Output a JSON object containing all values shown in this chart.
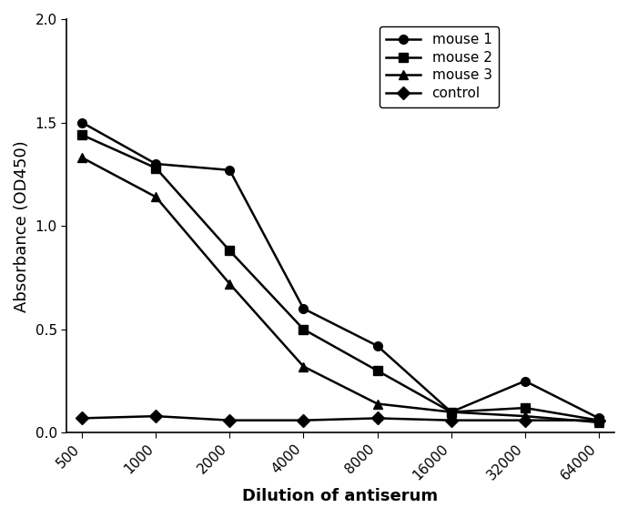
{
  "x_values": [
    500,
    1000,
    2000,
    4000,
    8000,
    16000,
    32000,
    64000
  ],
  "x_labels": [
    "500",
    "1000",
    "2000",
    "4000",
    "8000",
    "16000",
    "32000",
    "64000"
  ],
  "series": {
    "mouse 1": {
      "y": [
        1.5,
        1.3,
        1.27,
        0.6,
        0.42,
        0.1,
        0.25,
        0.07
      ],
      "marker": "o",
      "color": "#000000",
      "linewidth": 1.8
    },
    "mouse 2": {
      "y": [
        1.44,
        1.28,
        0.88,
        0.5,
        0.3,
        0.1,
        0.12,
        0.06
      ],
      "marker": "s",
      "color": "#000000",
      "linewidth": 1.8
    },
    "mouse 3": {
      "y": [
        1.33,
        1.14,
        0.72,
        0.32,
        0.14,
        0.1,
        0.08,
        0.05
      ],
      "marker": "^",
      "color": "#000000",
      "linewidth": 1.8
    },
    "control": {
      "y": [
        0.07,
        0.08,
        0.06,
        0.06,
        0.07,
        0.06,
        0.06,
        0.06
      ],
      "marker": "D",
      "color": "#000000",
      "linewidth": 1.8
    }
  },
  "ylabel": "Absorbance (OD450)",
  "xlabel": "Dilution of antiserum",
  "ylim": [
    0.0,
    2.0
  ],
  "yticks": [
    0.0,
    0.5,
    1.0,
    1.5,
    2.0
  ],
  "background_color": "#ffffff",
  "label_fontsize": 13,
  "tick_fontsize": 11,
  "legend_fontsize": 11
}
